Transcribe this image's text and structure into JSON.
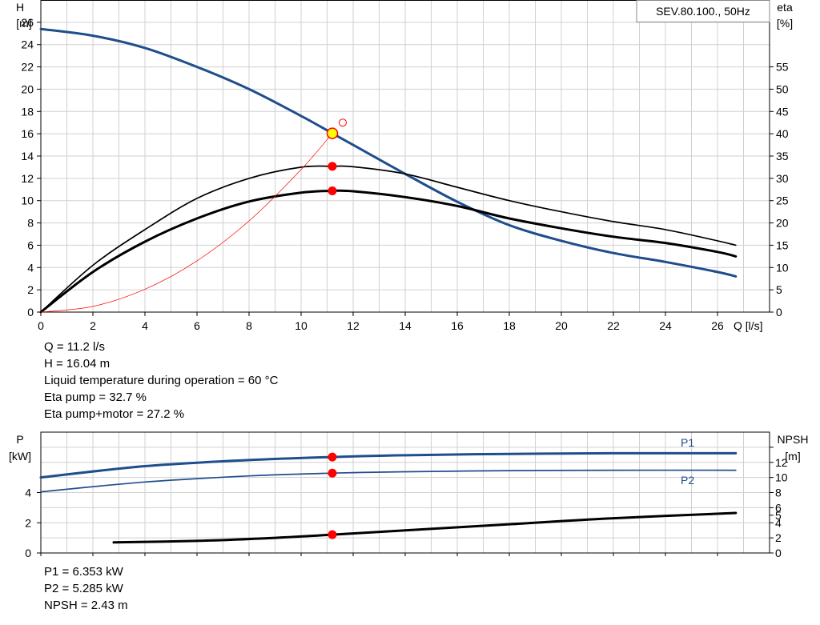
{
  "chart_data": [
    {
      "type": "line",
      "legend_box": "SEV.80.100., 50Hz",
      "xlabel": "Q [l/s]",
      "ylabel_left": [
        "H",
        "[m]"
      ],
      "ylabel_right": [
        "eta",
        "[%]"
      ],
      "xlim": [
        0,
        28
      ],
      "ylim_left": [
        0,
        28
      ],
      "ylim_right": [
        0,
        70
      ],
      "x_ticks": [
        0,
        2,
        4,
        6,
        8,
        10,
        12,
        14,
        16,
        18,
        20,
        22,
        24,
        26
      ],
      "y_left_ticks": [
        0,
        2,
        4,
        6,
        8,
        10,
        12,
        14,
        16,
        18,
        20,
        22,
        24,
        26
      ],
      "y_right_ticks": [
        0,
        5,
        10,
        15,
        20,
        25,
        30,
        35,
        40,
        45,
        50,
        55
      ],
      "grid": true,
      "series": [
        {
          "axis": "left",
          "color": "#1f4e8c",
          "x": [
            0,
            2,
            4,
            6,
            8,
            10,
            11.2,
            12,
            14,
            16,
            18,
            20,
            22,
            24,
            26,
            26.7
          ],
          "y": [
            25.4,
            24.8,
            23.7,
            22.0,
            20.0,
            17.6,
            16.04,
            15.0,
            12.4,
            9.9,
            7.8,
            6.4,
            5.3,
            4.5,
            3.6,
            3.2
          ]
        },
        {
          "axis": "right",
          "color": "#000000",
          "x": [
            0,
            2,
            4,
            6,
            8,
            10,
            11.2,
            12,
            14,
            16,
            18,
            20,
            22,
            24,
            26,
            26.7
          ],
          "y": [
            0,
            10.5,
            18.5,
            25.5,
            30.0,
            32.5,
            32.7,
            32.6,
            31.0,
            28.0,
            25.0,
            22.5,
            20.3,
            18.5,
            16.0,
            15.0
          ]
        },
        {
          "axis": "right",
          "color": "#000000",
          "x": [
            0,
            2,
            4,
            6,
            8,
            10,
            11.2,
            12,
            14,
            16,
            18,
            20,
            22,
            24,
            26,
            26.7
          ],
          "y": [
            0,
            9.0,
            15.8,
            21.0,
            24.8,
            26.8,
            27.2,
            27.1,
            25.8,
            23.8,
            21.0,
            18.8,
            16.9,
            15.5,
            13.5,
            12.5
          ]
        },
        {
          "axis": "left",
          "color": "#ff0000",
          "x": [
            0,
            2,
            4,
            6,
            8,
            10,
            11.2
          ],
          "y": [
            0,
            0.51,
            2.05,
            4.6,
            8.18,
            12.79,
            16.04
          ]
        }
      ],
      "operating_point": {
        "x": 11.2,
        "y": 16.04,
        "eta_pump": 32.7,
        "eta_total": 27.2
      },
      "requested_point": {
        "x": 11.6,
        "y": 17.0
      }
    },
    {
      "type": "line",
      "ylabel_left": [
        "P",
        "[kW]"
      ],
      "ylabel_right": [
        "NPSH",
        "[m]"
      ],
      "xlim": [
        0,
        28
      ],
      "ylim_left": [
        0,
        8
      ],
      "ylim_right": [
        0,
        16
      ],
      "y_left_ticks": [
        0,
        2,
        4
      ],
      "y_right_ticks": [
        0,
        2,
        4,
        5,
        6,
        8,
        10,
        12,
        14
      ],
      "y_right_labels": [
        "0",
        "2",
        "4",
        "5",
        "6",
        "8",
        "10",
        "12"
      ],
      "grid": true,
      "series": [
        {
          "name": "P1",
          "axis": "left",
          "color": "#1f4e8c",
          "x": [
            0,
            4,
            8,
            11.2,
            14,
            18,
            22,
            26.7
          ],
          "y": [
            5.0,
            5.75,
            6.15,
            6.353,
            6.47,
            6.56,
            6.6,
            6.6
          ]
        },
        {
          "name": "P2",
          "axis": "left",
          "color": "#1f4e8c",
          "x": [
            0,
            4,
            8,
            11.2,
            14,
            18,
            22,
            26.7
          ],
          "y": [
            4.05,
            4.7,
            5.1,
            5.285,
            5.38,
            5.45,
            5.48,
            5.48
          ]
        },
        {
          "axis": "right",
          "color": "#000000",
          "x": [
            2.8,
            6,
            9,
            11.2,
            14,
            18,
            22,
            26.7
          ],
          "y": [
            1.4,
            1.6,
            2.0,
            2.43,
            3.0,
            3.8,
            4.6,
            5.3
          ]
        }
      ],
      "operating_point": {
        "x": 11.2,
        "p1": 6.353,
        "p2": 5.285,
        "npsh": 2.43
      }
    }
  ],
  "info_top": [
    "Q = 11.2 l/s",
    "H = 16.04 m",
    "Liquid temperature during operation = 60 °C",
    "Eta pump = 32.7 %",
    "Eta pump+motor = 27.2 %"
  ],
  "info_bottom": [
    "P1 = 6.353 kW",
    "P2 = 5.285 kW",
    "NPSH = 2.43 m"
  ]
}
